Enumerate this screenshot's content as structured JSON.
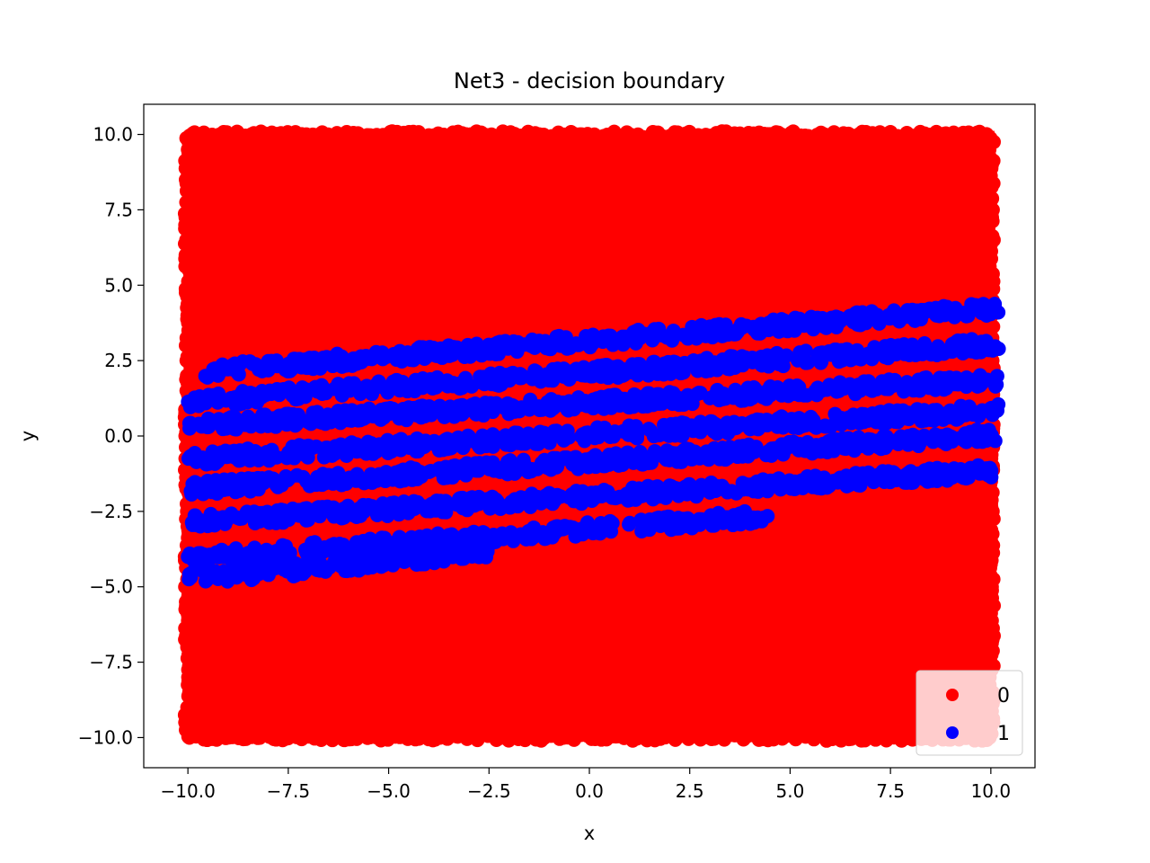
{
  "chart_data": {
    "type": "scatter",
    "title": "Net3 - decision boundary",
    "xlabel": "x",
    "ylabel": "y",
    "xlim": [
      -11.1,
      11.1
    ],
    "ylim": [
      -11.0,
      11.0
    ],
    "xticks": [
      -10.0,
      -7.5,
      -5.0,
      -2.5,
      0.0,
      2.5,
      5.0,
      7.5,
      10.0
    ],
    "yticks": [
      -10.0,
      -7.5,
      -5.0,
      -2.5,
      0.0,
      2.5,
      5.0,
      7.5,
      10.0
    ],
    "xtick_labels": [
      "−10.0",
      "−7.5",
      "−5.0",
      "−2.5",
      "0.0",
      "2.5",
      "5.0",
      "7.5",
      "10.0"
    ],
    "ytick_labels": [
      "−10.0",
      "−7.5",
      "−5.0",
      "−2.5",
      "0.0",
      "2.5",
      "5.0",
      "7.5",
      "10.0"
    ],
    "grid": false,
    "legend_position": "lower-right",
    "series": [
      {
        "name": "0",
        "color": "#ff0000",
        "description_region": {
          "x_range": [
            -10,
            10
          ],
          "y_range": [
            -10,
            10
          ]
        }
      },
      {
        "name": "1",
        "color": "#0000ff",
        "bands": [
          {
            "x": [
              -9.6,
              10.2
            ],
            "y": [
              2.0,
              4.4
            ]
          },
          {
            "x": [
              -10.0,
              10.2
            ],
            "y": [
              1.0,
              3.2
            ]
          },
          {
            "x": [
              -10.0,
              10.2
            ],
            "y": [
              0.2,
              2.0
            ]
          },
          {
            "x": [
              -10.0,
              10.2
            ],
            "y": [
              -0.9,
              1.0
            ]
          },
          {
            "x": [
              -10.0,
              10.2
            ],
            "y": [
              -1.9,
              0.2
            ]
          },
          {
            "x": [
              -10.0,
              10.2
            ],
            "y": [
              -3.0,
              -1.0
            ]
          },
          {
            "x": [
              -10.0,
              4.5
            ],
            "y": [
              -4.2,
              -2.5
            ]
          },
          {
            "x": [
              -10.0,
              -2.5
            ],
            "y": [
              -4.9,
              -3.7
            ]
          }
        ]
      }
    ]
  }
}
